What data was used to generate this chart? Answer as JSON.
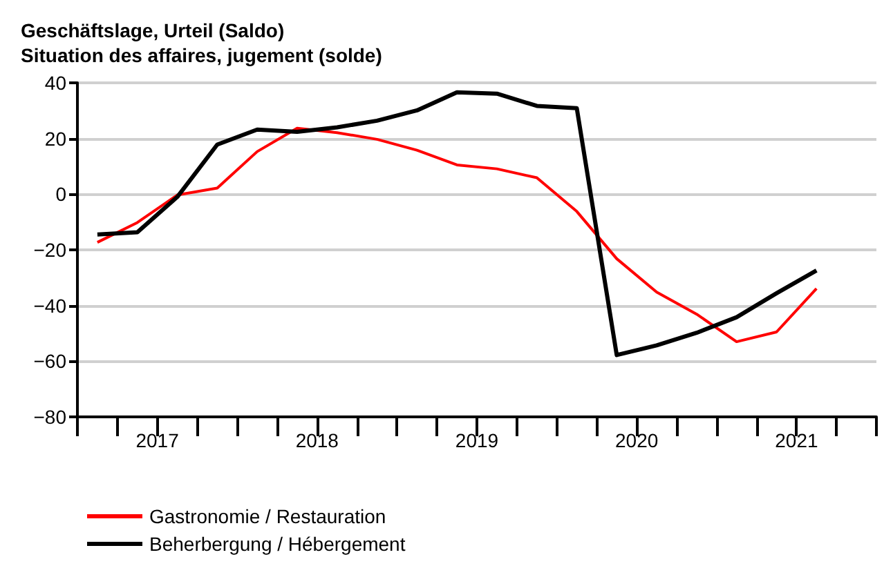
{
  "chart_data": {
    "type": "line",
    "title": "Geschäftslage, Urteil (Saldo)\nSituation des affaires, jugement (solde)",
    "x": [
      2017.125,
      2017.375,
      2017.625,
      2017.875,
      2018.125,
      2018.375,
      2018.625,
      2018.875,
      2019.125,
      2019.375,
      2019.625,
      2019.875,
      2020.125,
      2020.375,
      2020.625,
      2020.875,
      2021.125,
      2021.375,
      2021.625
    ],
    "series": [
      {
        "name": "Gastronomie / Restauration",
        "color": "#ff0000",
        "values": [
          -17.3,
          -10.2,
          -0.3,
          2.2,
          15.3,
          23.7,
          22.1,
          19.7,
          15.8,
          10.5,
          9.1,
          5.9,
          -6.2,
          -23.2,
          -35.2,
          -43.1,
          -53.0,
          -49.5,
          -33.9
        ]
      },
      {
        "name": "Beherbergung / Hébergement",
        "color": "#000000",
        "values": [
          -14.5,
          -13.7,
          -1,
          17.8,
          23.2,
          22.4,
          24.0,
          26.4,
          30.1,
          36.6,
          36.1,
          31.7,
          30.9,
          -57.8,
          -54.3,
          -49.8,
          -44.2,
          -35.6,
          -27.4
        ]
      }
    ],
    "xlim": [
      2017,
      2022
    ],
    "xticks": [
      {
        "value": 2017,
        "label": null
      },
      {
        "value": 2017.25,
        "label": null
      },
      {
        "value": 2017.5,
        "label": "2017"
      },
      {
        "value": 2017.75,
        "label": null
      },
      {
        "value": 2018,
        "label": null
      },
      {
        "value": 2018.25,
        "label": null
      },
      {
        "value": 2018.5,
        "label": "2018"
      },
      {
        "value": 2018.75,
        "label": null
      },
      {
        "value": 2019,
        "label": null
      },
      {
        "value": 2019.25,
        "label": null
      },
      {
        "value": 2019.5,
        "label": "2019"
      },
      {
        "value": 2019.75,
        "label": null
      },
      {
        "value": 2020,
        "label": null
      },
      {
        "value": 2020.25,
        "label": null
      },
      {
        "value": 2020.5,
        "label": "2020"
      },
      {
        "value": 2020.75,
        "label": null
      },
      {
        "value": 2021,
        "label": null
      },
      {
        "value": 2021.25,
        "label": null
      },
      {
        "value": 2021.5,
        "label": "2021"
      },
      {
        "value": 2021.75,
        "label": null
      },
      {
        "value": 2022,
        "label": null
      }
    ],
    "ylim": [
      -80,
      40
    ],
    "yticks": [
      -80,
      -60,
      -40,
      -20,
      0,
      20,
      40
    ],
    "grid": "y",
    "legend": "bottom left",
    "marker": "none",
    "line_style": "solid"
  }
}
